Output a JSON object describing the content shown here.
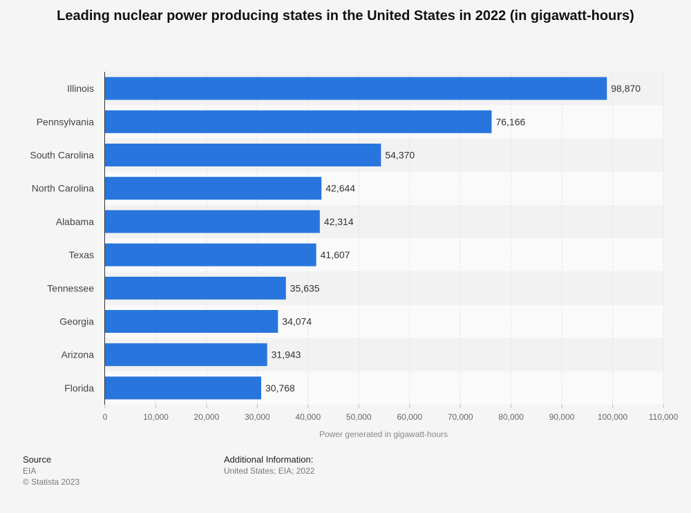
{
  "chart_data": {
    "type": "bar",
    "orientation": "horizontal",
    "title": "Leading nuclear power producing states in the United States in 2022 (in gigawatt-hours)",
    "xlabel": "Power generated in gigawatt-hours",
    "ylabel": "",
    "categories": [
      "Illinois",
      "Pennsylvania",
      "South Carolina",
      "North Carolina",
      "Alabama",
      "Texas",
      "Tennessee",
      "Georgia",
      "Arizona",
      "Florida"
    ],
    "values": [
      98870,
      76166,
      54370,
      42644,
      42314,
      41607,
      35635,
      34074,
      31943,
      30768
    ],
    "value_labels": [
      "98,870",
      "76,166",
      "54,370",
      "42,644",
      "42,314",
      "41,607",
      "35,635",
      "34,074",
      "31,943",
      "30,768"
    ],
    "xlim": [
      0,
      110000
    ],
    "ticks": [
      0,
      10000,
      20000,
      30000,
      40000,
      50000,
      60000,
      70000,
      80000,
      90000,
      100000,
      110000
    ],
    "tick_labels": [
      "0",
      "10,000",
      "20,000",
      "30,000",
      "40,000",
      "50,000",
      "60,000",
      "70,000",
      "80,000",
      "90,000",
      "100,000",
      "110,000"
    ],
    "grid": true,
    "bar_color": "#2876dd",
    "band_colors": [
      "#f2f2f2",
      "#fafafa"
    ]
  },
  "footer": {
    "source_heading": "Source",
    "source": "EIA",
    "copyright": "© Statista 2023",
    "info_heading": "Additional Information:",
    "info": "United States; EIA; 2022"
  }
}
